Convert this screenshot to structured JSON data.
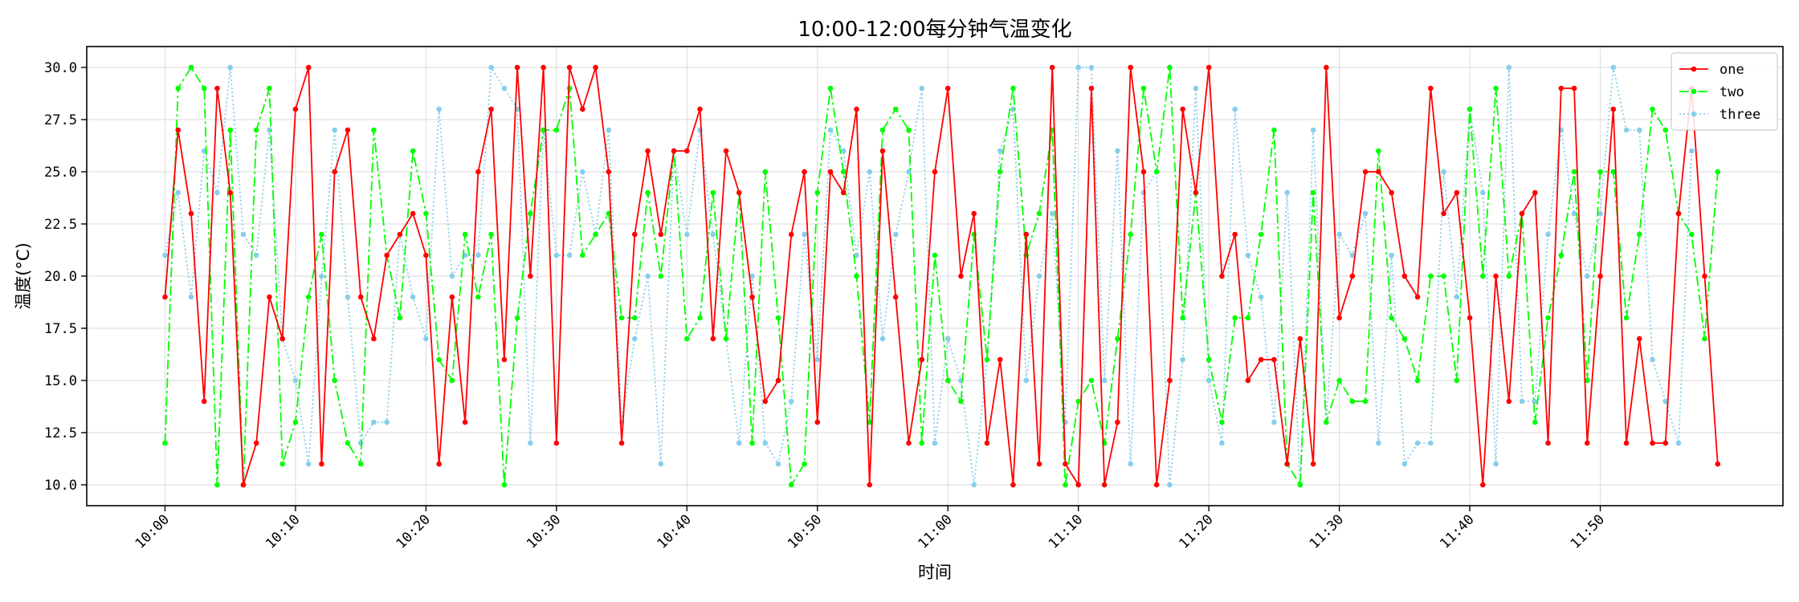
{
  "chart_data": {
    "type": "line",
    "title": "10:00-12:00每分钟气温变化",
    "xlabel": "时间",
    "ylabel": "温度(°C)",
    "ylim": [
      9,
      31
    ],
    "xlim": [
      -6,
      124
    ],
    "x_ticks": [
      0,
      10,
      20,
      30,
      40,
      50,
      60,
      70,
      80,
      90,
      100,
      110
    ],
    "x_tick_labels": [
      "10:00",
      "10:10",
      "10:20",
      "10:30",
      "10:40",
      "10:50",
      "11:00",
      "11:10",
      "11:20",
      "11:30",
      "11:40",
      "11:50"
    ],
    "y_ticks": [
      10.0,
      12.5,
      15.0,
      17.5,
      20.0,
      22.5,
      25.0,
      27.5,
      30.0
    ],
    "y_tick_labels": [
      "10.0",
      "12.5",
      "15.0",
      "17.5",
      "20.0",
      "22.5",
      "25.0",
      "27.5",
      "30.0"
    ],
    "grid": true,
    "legend_position": "top-right",
    "series": [
      {
        "name": "one",
        "color": "#ff0000",
        "linestyle": "solid",
        "values": [
          19,
          27,
          23,
          14,
          29,
          24,
          10,
          12,
          19,
          17,
          28,
          30,
          11,
          25,
          27,
          19,
          17,
          21,
          22,
          23,
          21,
          11,
          19,
          13,
          25,
          28,
          16,
          30,
          20,
          30,
          12,
          30,
          28,
          30,
          25,
          12,
          22,
          26,
          22,
          26,
          26,
          28,
          17,
          26,
          24,
          19,
          14,
          15,
          22,
          25,
          13,
          25,
          24,
          28,
          10,
          26,
          19,
          12,
          16,
          25,
          29,
          20,
          23,
          12,
          16,
          10,
          22,
          11,
          30,
          11,
          10,
          29,
          10,
          13,
          30,
          25,
          10,
          15,
          28,
          24,
          30,
          20,
          22,
          15,
          16,
          16,
          11,
          17,
          11,
          30,
          18,
          20,
          25,
          25,
          24,
          20,
          19,
          29,
          23,
          24,
          18,
          10,
          20,
          14,
          23,
          24,
          12,
          29,
          29,
          12,
          20,
          28,
          12,
          17,
          12,
          12,
          23,
          29,
          20,
          11
        ]
      },
      {
        "name": "two",
        "color": "#00ff00",
        "linestyle": "dashdot",
        "values": [
          12,
          29,
          30,
          29,
          10,
          27,
          10,
          27,
          29,
          11,
          13,
          19,
          22,
          15,
          12,
          11,
          27,
          21,
          18,
          26,
          23,
          16,
          15,
          22,
          19,
          22,
          10,
          18,
          23,
          27,
          27,
          29,
          21,
          22,
          23,
          18,
          18,
          24,
          20,
          26,
          17,
          18,
          24,
          17,
          24,
          12,
          25,
          18,
          10,
          11,
          24,
          29,
          25,
          20,
          13,
          27,
          28,
          27,
          12,
          21,
          15,
          14,
          22,
          16,
          25,
          29,
          21,
          23,
          27,
          10,
          14,
          15,
          12,
          17,
          22,
          29,
          25,
          30,
          18,
          24,
          16,
          13,
          18,
          18,
          22,
          27,
          11,
          10,
          24,
          13,
          15,
          14,
          14,
          26,
          18,
          17,
          15,
          20,
          20,
          15,
          28,
          20,
          29,
          20,
          23,
          13,
          18,
          21,
          25,
          15,
          25,
          25,
          18,
          22,
          28,
          27,
          23,
          22,
          17,
          25
        ]
      },
      {
        "name": "three",
        "color": "#87ceeb",
        "linestyle": "dotted",
        "values": [
          21,
          24,
          19,
          26,
          24,
          30,
          22,
          21,
          27,
          17,
          15,
          11,
          20,
          27,
          19,
          12,
          13,
          13,
          22,
          19,
          17,
          28,
          20,
          21,
          21,
          30,
          29,
          28,
          12,
          27,
          21,
          21,
          25,
          22,
          27,
          13,
          17,
          20,
          11,
          26,
          22,
          27,
          22,
          17,
          12,
          20,
          12,
          11,
          14,
          22,
          16,
          27,
          26,
          21,
          25,
          17,
          22,
          25,
          29,
          12,
          17,
          15,
          10,
          16,
          26,
          28,
          15,
          20,
          23,
          13,
          30,
          30,
          15,
          26,
          11,
          24,
          25,
          10,
          16,
          29,
          15,
          12,
          28,
          21,
          19,
          13,
          24,
          10,
          27,
          13,
          22,
          21,
          23,
          12,
          21,
          11,
          12,
          12,
          25,
          19,
          28,
          24,
          11,
          30,
          14,
          14,
          22,
          27,
          23,
          20,
          23,
          30,
          27,
          27,
          16,
          14,
          12,
          26
        ]
      }
    ]
  }
}
